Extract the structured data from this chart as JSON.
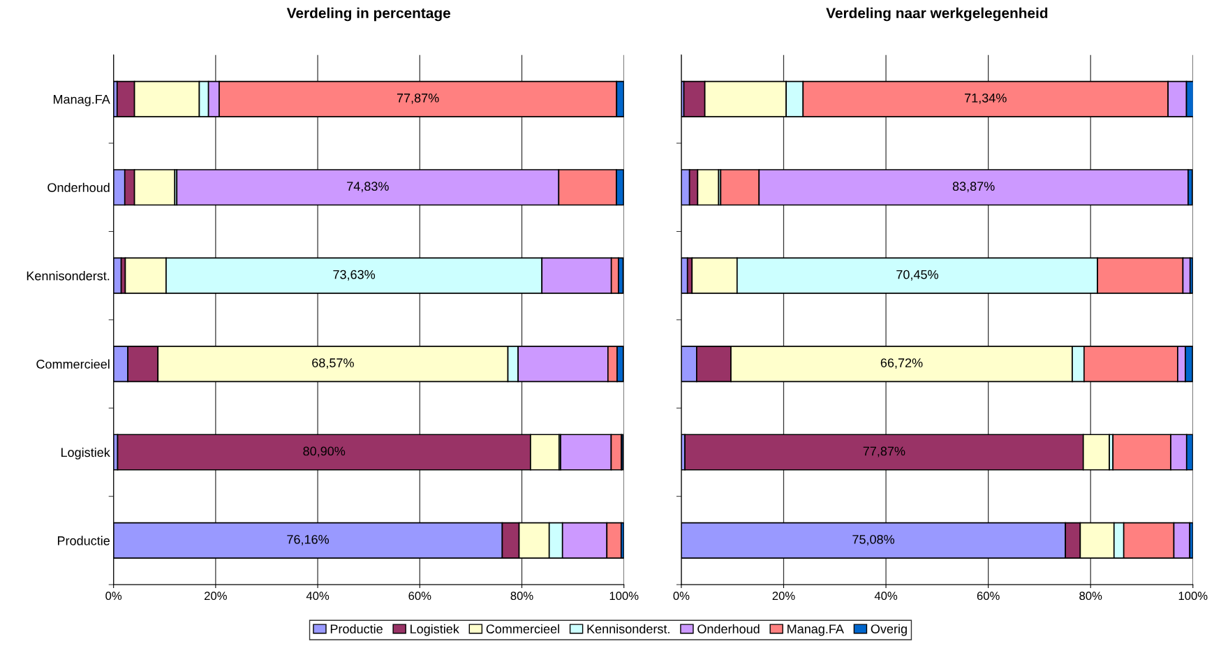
{
  "chart_data": [
    {
      "type": "bar",
      "orientation": "horizontal",
      "stacked": true,
      "title": "Verdeling in percentage",
      "categories": [
        "Manag.FA",
        "Onderhoud",
        "Kennisonderst.",
        "Commercieel",
        "Logistiek",
        "Productie"
      ],
      "series": [
        {
          "name": "Productie",
          "color": "#9999ff",
          "values": [
            0.7,
            2.2,
            1.5,
            2.8,
            0.8,
            76.16
          ],
          "value_labels": [
            null,
            null,
            null,
            null,
            null,
            "76,16%"
          ]
        },
        {
          "name": "Logistiek",
          "color": "#993366",
          "values": [
            3.4,
            1.9,
            0.8,
            5.9,
            80.9,
            3.3
          ],
          "value_labels": [
            null,
            null,
            null,
            null,
            "80,90%",
            null
          ]
        },
        {
          "name": "Commercieel",
          "color": "#ffffcc",
          "values": [
            12.7,
            7.9,
            8.0,
            68.57,
            5.6,
            5.9
          ],
          "value_labels": [
            null,
            null,
            null,
            "68,57%",
            null,
            null
          ]
        },
        {
          "name": "Kennisonderst.",
          "color": "#ccffff",
          "values": [
            1.8,
            0.4,
            73.63,
            2.0,
            0.3,
            2.6
          ],
          "value_labels": [
            null,
            null,
            "73,63%",
            null,
            null,
            null
          ]
        },
        {
          "name": "Onderhoud",
          "color": "#cc99ff",
          "values": [
            2.1,
            74.83,
            13.6,
            17.6,
            9.9,
            8.7
          ],
          "value_labels": [
            null,
            "74,83%",
            null,
            null,
            null,
            null
          ]
        },
        {
          "name": "Manag.FA",
          "color": "#ff8080",
          "values": [
            77.87,
            11.3,
            1.4,
            1.8,
            2.0,
            2.8
          ],
          "value_labels": [
            "77,87%",
            null,
            null,
            null,
            null,
            null
          ]
        },
        {
          "name": "Overig",
          "color": "#0066cc",
          "values": [
            1.4,
            1.4,
            0.9,
            1.2,
            0.3,
            0.5
          ]
        }
      ],
      "xlim": [
        0,
        100
      ],
      "xticks": [
        {
          "value": 0,
          "label": "0%"
        },
        {
          "value": 20,
          "label": "20%"
        },
        {
          "value": 40,
          "label": "40%"
        },
        {
          "value": 60,
          "label": "60%"
        },
        {
          "value": 80,
          "label": "80%"
        },
        {
          "value": 100,
          "label": "100%"
        }
      ],
      "grid": "x",
      "legend": "bottom"
    },
    {
      "type": "bar",
      "orientation": "horizontal",
      "stacked": true,
      "title": "Verdeling naar werkgelegenheid",
      "categories": [
        null,
        null,
        null,
        null,
        null,
        null
      ],
      "series": [
        {
          "color": "#9999ff",
          "values": [
            0.5,
            1.6,
            1.2,
            3.0,
            0.7,
            75.08
          ],
          "value_labels": [
            null,
            null,
            null,
            null,
            null,
            "75,08%"
          ]
        },
        {
          "color": "#993366",
          "values": [
            4.1,
            1.6,
            0.9,
            6.7,
            77.87,
            2.9
          ],
          "value_labels": [
            null,
            null,
            null,
            null,
            "77,87%",
            null
          ]
        },
        {
          "color": "#ffffcc",
          "values": [
            15.9,
            4.1,
            8.8,
            66.72,
            5.1,
            6.6
          ],
          "value_labels": [
            null,
            null,
            null,
            "66,72%",
            null,
            null
          ]
        },
        {
          "color": "#ccffff",
          "values": [
            3.3,
            0.4,
            70.45,
            2.3,
            0.7,
            1.9
          ],
          "value_labels": [
            null,
            null,
            "70,45%",
            null,
            null,
            null
          ]
        },
        {
          "color": "#ff8080",
          "values": [
            71.34,
            7.5,
            16.7,
            18.3,
            11.3,
            9.8
          ],
          "value_labels": [
            "71,34%",
            null,
            null,
            null,
            null,
            null
          ]
        },
        {
          "color": "#cc99ff",
          "values": [
            3.6,
            83.87,
            1.4,
            1.5,
            3.1,
            3.1
          ],
          "value_labels": [
            null,
            "83,87%",
            null,
            null,
            null,
            null
          ]
        },
        {
          "color": "#0066cc",
          "values": [
            1.4,
            0.8,
            0.5,
            1.4,
            1.2,
            0.6
          ]
        }
      ],
      "xlim": [
        0,
        100
      ],
      "xticks": [
        {
          "value": 0,
          "label": "0%"
        },
        {
          "value": 20,
          "label": "20%"
        },
        {
          "value": 40,
          "label": "40%"
        },
        {
          "value": 60,
          "label": "60%"
        },
        {
          "value": 80,
          "label": "80%"
        },
        {
          "value": 100,
          "label": "100%"
        }
      ],
      "grid": "x",
      "tick_labels": "x"
    }
  ]
}
